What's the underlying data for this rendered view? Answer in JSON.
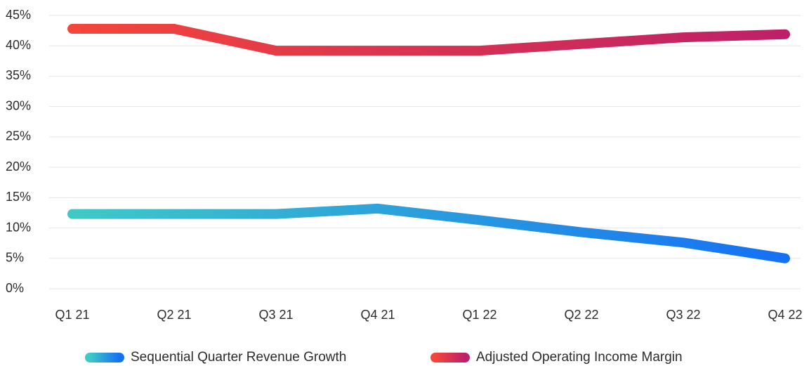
{
  "chart_data": {
    "type": "line",
    "categories": [
      "Q1 21",
      "Q2 21",
      "Q3 21",
      "Q4 21",
      "Q1 22",
      "Q2 22",
      "Q3 22",
      "Q4 22"
    ],
    "series": [
      {
        "name": "Sequential Quarter Revenue Growth",
        "color": [
          "#3fc9c6",
          "#1570f4"
        ],
        "values": [
          12.3,
          12.3,
          12.3,
          13.2,
          11.3,
          9.3,
          7.6,
          5.0
        ]
      },
      {
        "name": "Adjusted Operating Income Margin",
        "color": [
          "#f4463a",
          "#bd2068"
        ],
        "values": [
          42.8,
          42.8,
          39.2,
          39.2,
          39.2,
          40.3,
          41.4,
          41.9
        ]
      }
    ],
    "ylim": [
      0,
      45
    ],
    "yticks": [
      {
        "value": 0,
        "label": "0%"
      },
      {
        "value": 5,
        "label": "5%"
      },
      {
        "value": 10,
        "label": "10%"
      },
      {
        "value": 15,
        "label": "15%"
      },
      {
        "value": 20,
        "label": "20%"
      },
      {
        "value": 25,
        "label": "25%"
      },
      {
        "value": 30,
        "label": "30%"
      },
      {
        "value": 35,
        "label": "35%"
      },
      {
        "value": 40,
        "label": "40%"
      },
      {
        "value": 45,
        "label": "45%"
      }
    ],
    "grid": true,
    "legend": "bottom"
  }
}
